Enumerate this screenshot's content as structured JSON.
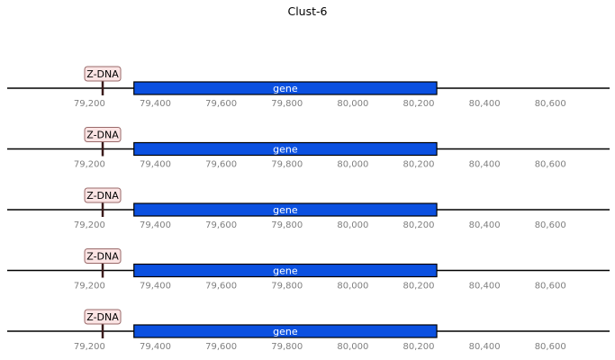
{
  "title": "Clust-6",
  "track_data": {
    "x_range": [
      78950,
      80780
    ],
    "ticks": [
      79200,
      79400,
      79600,
      79800,
      80000,
      80200,
      80400,
      80600
    ],
    "tick_labels": [
      "79,200",
      "79,400",
      "79,600",
      "79,800",
      "80,000",
      "80,200",
      "80,400",
      "80,600"
    ],
    "tracks": [
      {
        "gene": {
          "label": "gene",
          "start": 79335,
          "end": 80255
        },
        "feature": {
          "label": "Z-DNA",
          "position": 79240
        }
      },
      {
        "gene": {
          "label": "gene",
          "start": 79335,
          "end": 80255
        },
        "feature": {
          "label": "Z-DNA",
          "position": 79240
        }
      },
      {
        "gene": {
          "label": "gene",
          "start": 79335,
          "end": 80255
        },
        "feature": {
          "label": "Z-DNA",
          "position": 79240
        }
      },
      {
        "gene": {
          "label": "gene",
          "start": 79335,
          "end": 80255
        },
        "feature": {
          "label": "Z-DNA",
          "position": 79240
        }
      },
      {
        "gene": {
          "label": "gene",
          "start": 79335,
          "end": 80255
        },
        "feature": {
          "label": "Z-DNA",
          "position": 79240
        }
      }
    ]
  },
  "colors": {
    "gene_fill": "#0b50e0",
    "gene_stroke": "#000000",
    "feature_box_fill": "#fbe4e4",
    "feature_box_stroke": "#9a6a6a",
    "feature_marker": "#3a1a1a",
    "axis_line": "#000000"
  }
}
